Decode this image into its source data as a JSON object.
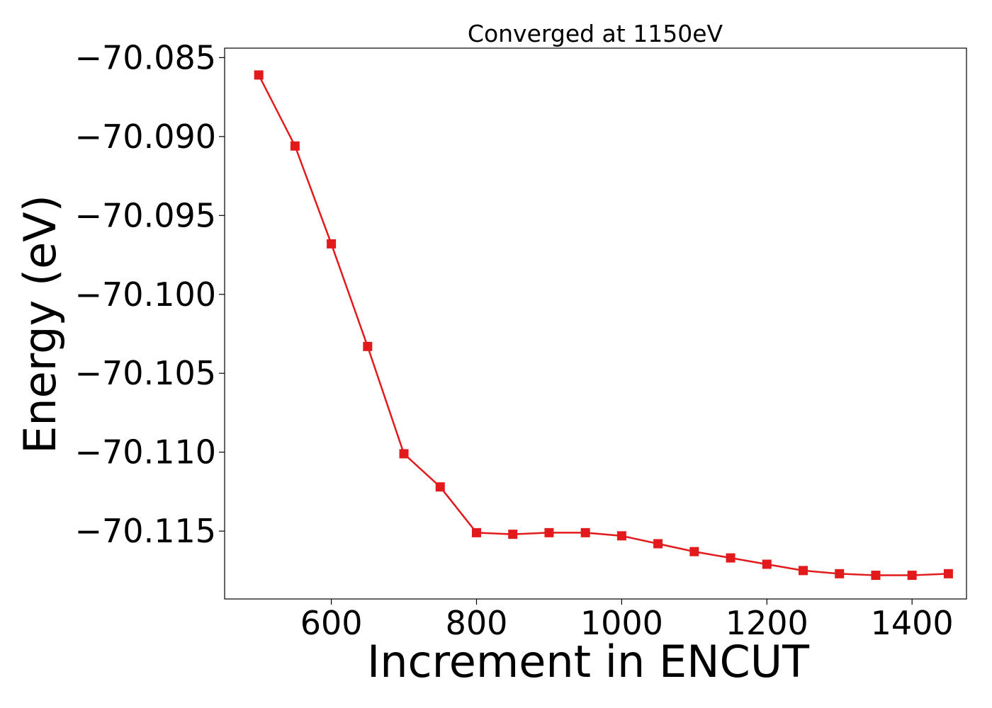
{
  "chart_data": {
    "type": "line",
    "title": "Converged at 1150eV",
    "xlabel": "Increment in ENCUT",
    "ylabel": "Energy (eV)",
    "xlim": [
      453,
      1475
    ],
    "ylim": [
      -70.1193,
      -70.0844
    ],
    "xticks": [
      600,
      800,
      1000,
      1200,
      1400
    ],
    "xtick_labels": [
      "600",
      "800",
      "1000",
      "1200",
      "1400"
    ],
    "yticks": [
      -70.085,
      -70.09,
      -70.095,
      -70.1,
      -70.105,
      -70.11,
      -70.115
    ],
    "ytick_labels": [
      "−70.085",
      "−70.090",
      "−70.095",
      "−70.100",
      "−70.105",
      "−70.110",
      "−70.115"
    ],
    "grid": false,
    "legend": "none",
    "series": [
      {
        "color": "#e31a1c",
        "marker": "square",
        "x": [
          500,
          550,
          600,
          650,
          700,
          750,
          800,
          850,
          900,
          950,
          1000,
          1050,
          1100,
          1150,
          1200,
          1250,
          1300,
          1350,
          1400,
          1450
        ],
        "y": [
          -70.0861,
          -70.0906,
          -70.0968,
          -70.1033,
          -70.1101,
          -70.1122,
          -70.1151,
          -70.1152,
          -70.1151,
          -70.1151,
          -70.1153,
          -70.1158,
          -70.1163,
          -70.1167,
          -70.1171,
          -70.1175,
          -70.1177,
          -70.1178,
          -70.1178,
          -70.1177
        ]
      }
    ]
  }
}
